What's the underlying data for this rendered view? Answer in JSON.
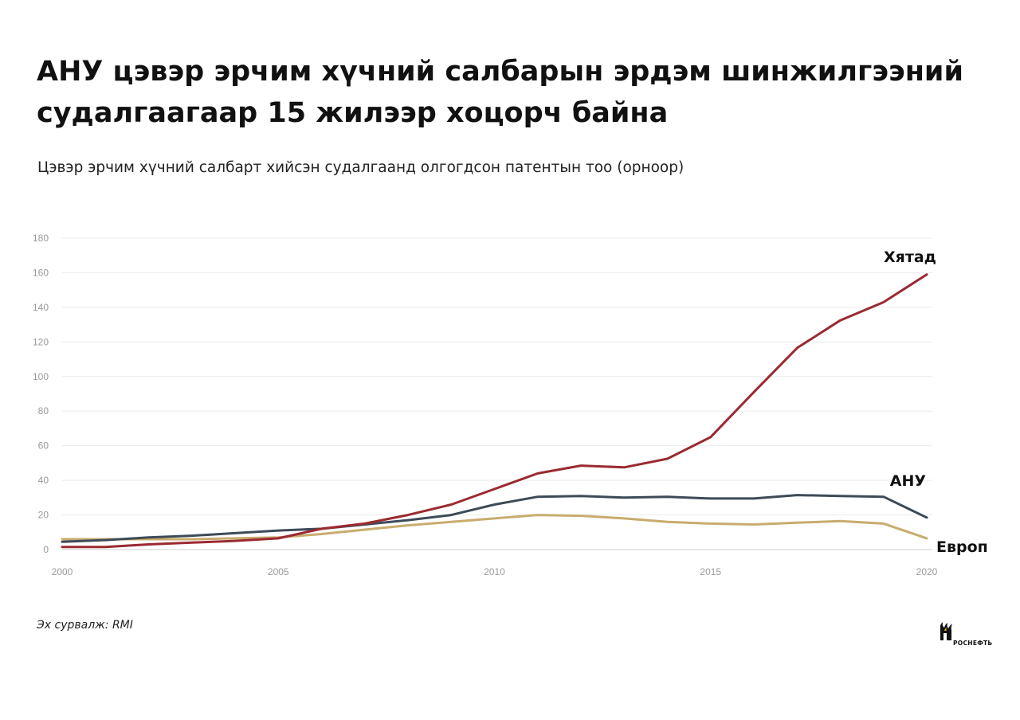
{
  "title_lines": [
    "АНУ цэвэр эрчим хүчний салбарын эрдэм шинжилгээний",
    "судалгаагаар 15 жилээр хоцорч байна"
  ],
  "subtitle": "Цэвэр эрчим хүчний салбарт хийсэн судалгаанд олгогдсон патентын тоо (орноор)",
  "source": "Эх сурвалж: RMI",
  "logo_text": "РОСНЕФТЬ",
  "chart_data": {
    "type": "line",
    "title": "АНУ цэвэр эрчим хүчний салбарын эрдэм шинжилгээний судалгаагаар 15 жилээр хоцорч байна",
    "subtitle": "Цэвэр эрчим хүчний салбарт хийсэн судалгаанд олгогдсон патентын тоо (орноор)",
    "xlabel": "",
    "ylabel": "",
    "xlim": [
      2000,
      2020
    ],
    "ylim": [
      0,
      180
    ],
    "x_ticks": [
      2000,
      2005,
      2010,
      2015,
      2020
    ],
    "y_ticks": [
      0,
      20,
      40,
      60,
      80,
      100,
      120,
      140,
      160,
      180
    ],
    "grid": "horizontal",
    "legend": "direct labels at line ends",
    "x": [
      2000,
      2001,
      2002,
      2003,
      2004,
      2005,
      2006,
      2007,
      2008,
      2009,
      2010,
      2011,
      2012,
      2013,
      2014,
      2015,
      2016,
      2017,
      2018,
      2019,
      2020
    ],
    "series": [
      {
        "name": "Хятад",
        "color": "#9b2a31",
        "values": [
          1.5,
          1.5,
          3,
          4,
          5,
          6.5,
          12,
          15,
          20,
          26,
          35,
          44,
          48.5,
          47.5,
          52.5,
          65,
          91,
          116.5,
          132.5,
          143,
          159
        ]
      },
      {
        "name": "АНУ",
        "color": "#3d4b57",
        "values": [
          4.5,
          5.5,
          7,
          8,
          9.5,
          11,
          12,
          14.5,
          17,
          20,
          26,
          30.5,
          31,
          30,
          30.5,
          29.5,
          29.5,
          31.5,
          31,
          30.5,
          18.5
        ]
      },
      {
        "name": "Европ",
        "color": "#c8ac6e",
        "values": [
          6,
          6,
          6,
          6,
          6.5,
          7,
          9,
          11.5,
          14,
          16,
          18,
          20,
          19.5,
          18,
          16,
          15,
          14.5,
          15.5,
          16.5,
          15,
          6.5
        ]
      }
    ]
  }
}
